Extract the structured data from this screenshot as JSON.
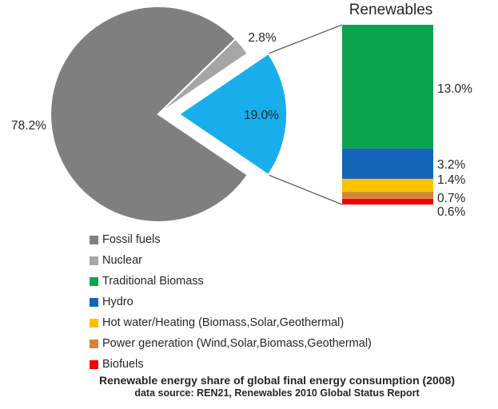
{
  "chart_data": {
    "type": "pie",
    "subtype": "bar-of-pie",
    "pie": {
      "labels": [
        "Fossil fuels",
        "Nuclear",
        "Renewables"
      ],
      "values": [
        78.2,
        2.8,
        19.0
      ],
      "value_labels": [
        "78.2%",
        "2.8%",
        "19.0%"
      ],
      "colors": [
        "#7F7F7F",
        "#A6A6A6",
        "#17AEEB"
      ],
      "exploded_slice": "Renewables"
    },
    "bar": {
      "title": "Renewables",
      "labels": [
        "Traditional Biomass",
        "Hydro",
        "Hot water/Heating (Biomass,Solar,Geothermal)",
        "Power generation (Wind,Solar,Biomass,Geothermal)",
        "Biofuels"
      ],
      "values": [
        13.0,
        3.2,
        1.4,
        0.7,
        0.6
      ],
      "value_labels": [
        "13.0%",
        "3.2%",
        "1.4%",
        "0.7%",
        "0.6%"
      ],
      "colors": [
        "#0AA54E",
        "#1565B8",
        "#FFC000",
        "#D1853B",
        "#F30000"
      ]
    },
    "legend": {
      "position": "bottom-left",
      "items": [
        {
          "label": "Fossil fuels",
          "color": "#7F7F7F"
        },
        {
          "label": "Nuclear",
          "color": "#A6A6A6"
        },
        {
          "label": "Traditional Biomass",
          "color": "#0AA54E"
        },
        {
          "label": "Hydro",
          "color": "#1565B8"
        },
        {
          "label": "Hot water/Heating (Biomass,Solar,Geothermal)",
          "color": "#FFC000"
        },
        {
          "label": "Power generation (Wind,Solar,Biomass,Geothermal)",
          "color": "#D1853B"
        },
        {
          "label": "Biofuels",
          "color": "#F30000"
        }
      ]
    },
    "caption": {
      "line1": "Renewable energy share of global final energy consumption (2008)",
      "line2": "data source: REN21, Renewables 2010 Global Status Report"
    },
    "leader_line_color": "#4D4D4D",
    "text_color": "#262626"
  }
}
